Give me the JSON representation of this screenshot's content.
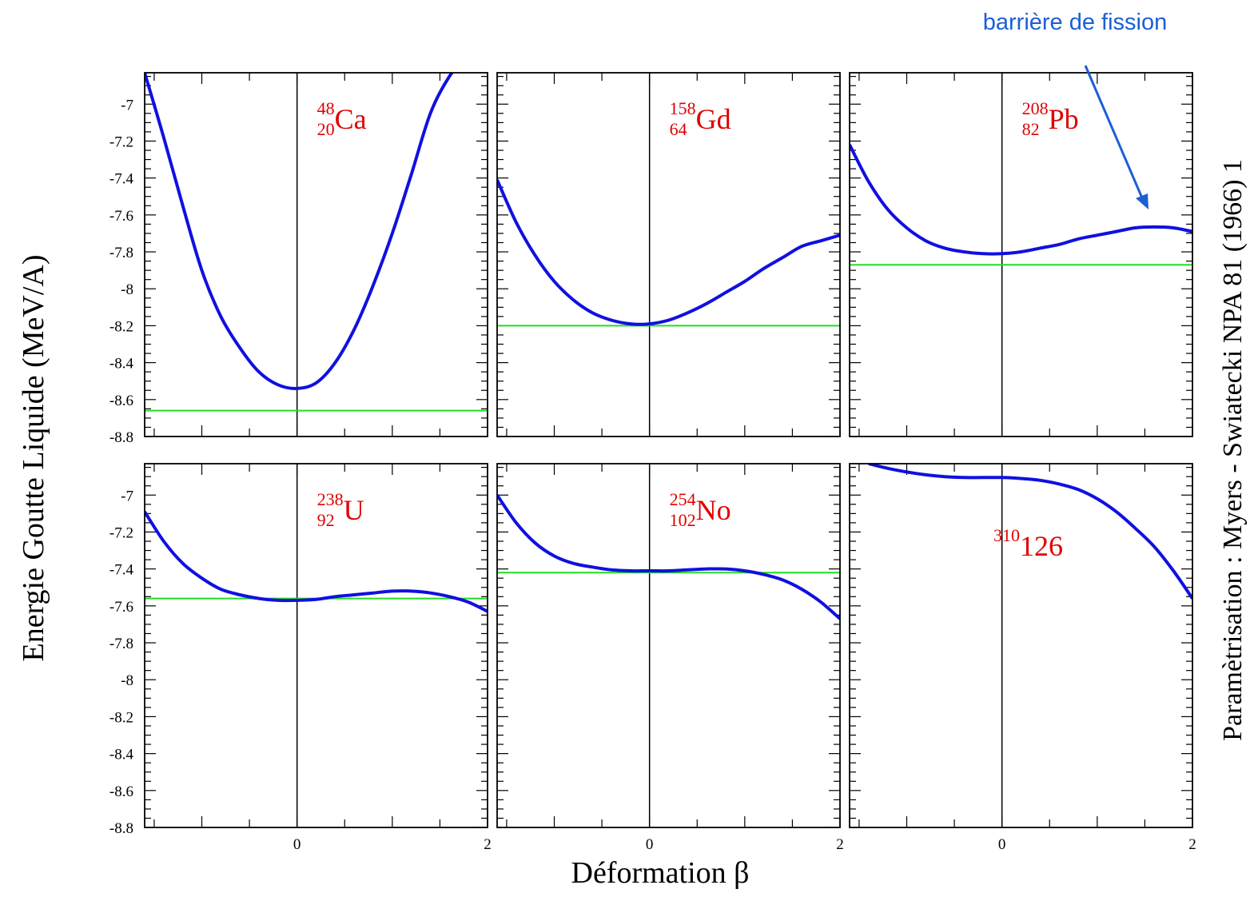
{
  "chart_data": {
    "type": "line",
    "xlabel": "Déformation β",
    "ylabel": "Energie Goutte Liquide (MeV/A)",
    "side_label": "Paramètrisation : Myers - Swiatecki NPA 81 (1966) 1",
    "annotation": "barrière de fission",
    "xlim": [
      -1.6,
      2
    ],
    "ylim": [
      -8.8,
      -6.83
    ],
    "xticks": [
      "0",
      "2"
    ],
    "yticks": [
      "-7",
      "-7.2",
      "-7.4",
      "-7.6",
      "-7.8",
      "-8",
      "-8.2",
      "-8.4",
      "-8.6",
      "-8.8"
    ],
    "colors": {
      "curve": "#1010e0",
      "ground_line": "#22dd22",
      "nuclide_label": "#e00000",
      "annotation": "#1a5fd6"
    },
    "panels": [
      {
        "nuclide": {
          "mass": "48",
          "charge": "20",
          "symbol": "Ca"
        },
        "ground": -8.66,
        "x": [
          -1.6,
          -1.4,
          -1.2,
          -1.0,
          -0.8,
          -0.6,
          -0.4,
          -0.2,
          0,
          0.2,
          0.4,
          0.6,
          0.8,
          1.0,
          1.2,
          1.4,
          1.6,
          1.8
        ],
        "y": [
          -6.83,
          -7.18,
          -7.55,
          -7.9,
          -8.15,
          -8.32,
          -8.45,
          -8.52,
          -8.54,
          -8.51,
          -8.4,
          -8.22,
          -7.98,
          -7.7,
          -7.38,
          -7.05,
          -6.85,
          -6.72
        ]
      },
      {
        "nuclide": {
          "mass": "158",
          "charge": "64",
          "symbol": "Gd"
        },
        "ground": -8.2,
        "x": [
          -1.6,
          -1.4,
          -1.2,
          -1.0,
          -0.8,
          -0.6,
          -0.4,
          -0.2,
          0,
          0.2,
          0.4,
          0.6,
          0.8,
          1.0,
          1.2,
          1.4,
          1.6,
          1.8,
          2.0
        ],
        "y": [
          -7.41,
          -7.64,
          -7.82,
          -7.96,
          -8.06,
          -8.13,
          -8.17,
          -8.19,
          -8.19,
          -8.17,
          -8.13,
          -8.08,
          -8.02,
          -7.96,
          -7.89,
          -7.83,
          -7.77,
          -7.74,
          -7.71
        ]
      },
      {
        "nuclide": {
          "mass": "208",
          "charge": "82",
          "symbol": "Pb"
        },
        "ground": -7.87,
        "x": [
          -1.6,
          -1.4,
          -1.2,
          -1.0,
          -0.8,
          -0.6,
          -0.4,
          -0.2,
          0,
          0.2,
          0.4,
          0.6,
          0.8,
          1.0,
          1.2,
          1.4,
          1.6,
          1.8,
          2.0
        ],
        "y": [
          -7.22,
          -7.42,
          -7.57,
          -7.67,
          -7.74,
          -7.78,
          -7.8,
          -7.81,
          -7.81,
          -7.8,
          -7.78,
          -7.76,
          -7.73,
          -7.71,
          -7.69,
          -7.67,
          -7.665,
          -7.67,
          -7.69
        ]
      },
      {
        "nuclide": {
          "mass": "238",
          "charge": "92",
          "symbol": "U"
        },
        "ground": -7.56,
        "x": [
          -1.6,
          -1.4,
          -1.2,
          -1.0,
          -0.8,
          -0.6,
          -0.4,
          -0.2,
          0,
          0.2,
          0.4,
          0.6,
          0.8,
          1.0,
          1.2,
          1.4,
          1.6,
          1.8,
          2.0
        ],
        "y": [
          -7.09,
          -7.25,
          -7.37,
          -7.45,
          -7.51,
          -7.54,
          -7.56,
          -7.57,
          -7.57,
          -7.565,
          -7.55,
          -7.54,
          -7.53,
          -7.52,
          -7.52,
          -7.53,
          -7.55,
          -7.58,
          -7.63
        ]
      },
      {
        "nuclide": {
          "mass": "254",
          "charge": "102",
          "symbol": "No"
        },
        "ground": -7.42,
        "x": [
          -1.6,
          -1.4,
          -1.2,
          -1.0,
          -0.8,
          -0.6,
          -0.4,
          -0.2,
          0,
          0.2,
          0.4,
          0.6,
          0.8,
          1.0,
          1.2,
          1.4,
          1.6,
          1.8,
          2.0
        ],
        "y": [
          -7.0,
          -7.15,
          -7.26,
          -7.33,
          -7.37,
          -7.39,
          -7.405,
          -7.41,
          -7.41,
          -7.41,
          -7.405,
          -7.4,
          -7.4,
          -7.41,
          -7.43,
          -7.46,
          -7.51,
          -7.58,
          -7.67
        ]
      },
      {
        "nuclide": {
          "mass": "310",
          "charge": "",
          "symbol": "126"
        },
        "ground": null,
        "x": [
          -1.4,
          -1.2,
          -1.0,
          -0.8,
          -0.6,
          -0.4,
          -0.2,
          0,
          0.2,
          0.4,
          0.6,
          0.8,
          1.0,
          1.2,
          1.4,
          1.6,
          1.8,
          2.0
        ],
        "y": [
          -6.83,
          -6.855,
          -6.875,
          -6.89,
          -6.9,
          -6.905,
          -6.905,
          -6.905,
          -6.91,
          -6.92,
          -6.94,
          -6.97,
          -7.02,
          -7.09,
          -7.18,
          -7.28,
          -7.41,
          -7.56
        ]
      }
    ]
  }
}
